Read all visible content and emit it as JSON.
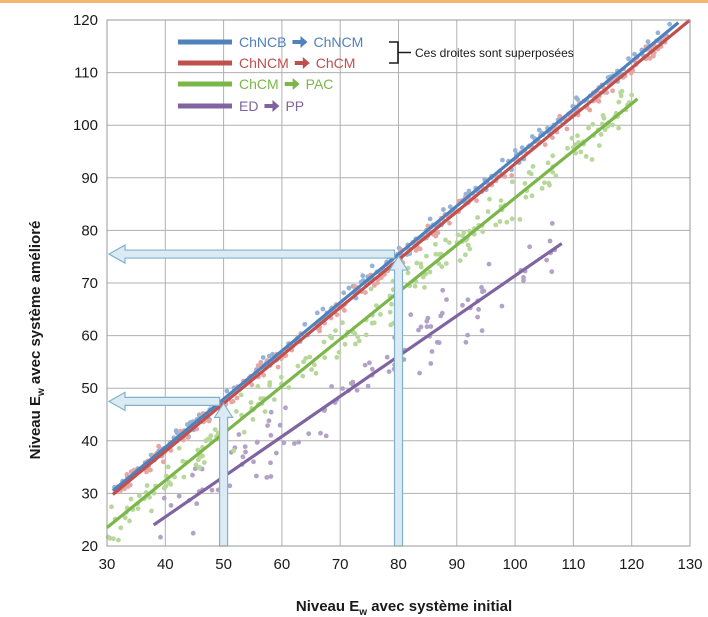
{
  "chart_data": {
    "type": "scatter",
    "xlabel_main": "Niveau E",
    "xlabel_sub": "w",
    "xlabel_rest": " avec système initial",
    "ylabel_main": "Niveau E",
    "ylabel_sub": "w",
    "ylabel_rest": " avec système amélioré",
    "xlim": [
      30,
      130
    ],
    "ylim": [
      20,
      120
    ],
    "x_ticks": [
      "30",
      "40",
      "50",
      "60",
      "70",
      "80",
      "90",
      "100",
      "110",
      "120",
      "130"
    ],
    "y_ticks": [
      "20",
      "30",
      "40",
      "50",
      "60",
      "70",
      "80",
      "90",
      "100",
      "110",
      "120"
    ],
    "grid": true,
    "legend_position": "top-left",
    "series": [
      {
        "name_from": "ChNCB",
        "name_to": "ChNCM",
        "color": "#4f81bd",
        "point_color": "#95b3d7",
        "line": [
          [
            31,
            30.5
          ],
          [
            128,
            119.5
          ]
        ],
        "scatter_x_range": [
          31,
          127
        ],
        "scatter_spread": 1.5
      },
      {
        "name_from": "ChNCM",
        "name_to": "ChCM",
        "color": "#c0504d",
        "point_color": "#e6a6a4",
        "line": [
          [
            31,
            29.8
          ],
          [
            130,
            120
          ]
        ],
        "scatter_x_range": [
          31,
          128
        ],
        "scatter_spread": 1.8
      },
      {
        "name_from": "ChCM",
        "name_to": "PAC",
        "color": "#7ab648",
        "point_color": "#b7d89a",
        "line": [
          [
            30,
            23.5
          ],
          [
            121,
            105
          ]
        ],
        "scatter_x_range": [
          30,
          121
        ],
        "scatter_spread": 4
      },
      {
        "name_from": "ED",
        "name_to": "PP",
        "color": "#8064a2",
        "point_color": "#b3a2c7",
        "line": [
          [
            38,
            24
          ],
          [
            108,
            77.5
          ]
        ],
        "scatter_x_range": [
          38,
          108
        ],
        "scatter_spread": 6
      }
    ],
    "bracket_note": "Ces droites sont superposées",
    "annotation_arrows": [
      {
        "from_x": 80,
        "to_y": 75.5
      },
      {
        "from_x": 50,
        "to_y": 47.5
      }
    ]
  }
}
